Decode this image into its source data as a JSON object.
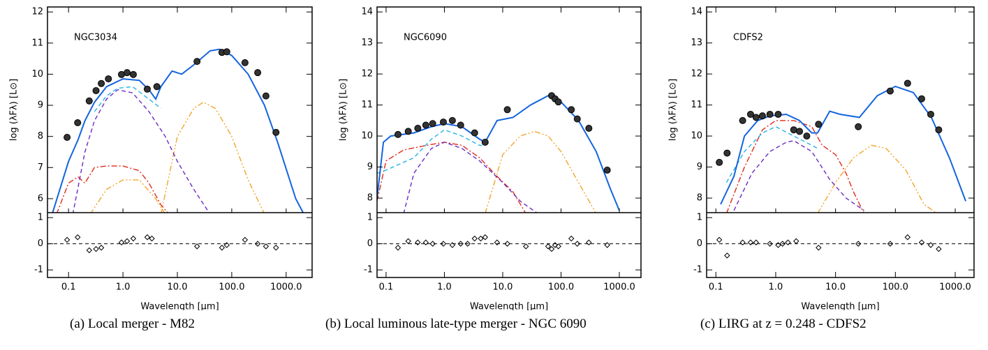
{
  "chart_data": [
    {
      "type": "line",
      "caption": "(a) Local merger - M82",
      "label": "NGC3034",
      "xlabel": "Wavelength [μm]",
      "ylabel": "log (λFλ) [L⊙]",
      "log_x": true,
      "xlim": [
        0.041,
        3000
      ],
      "xticks": [
        0.1,
        {
          "value": 1,
          "label": "1.0"
        },
        {
          "value": 10,
          "label": "10.0"
        },
        {
          "value": 100,
          "label": "100.0"
        },
        {
          "value": 1000,
          "label": "1000.0"
        }
      ],
      "ylim": [
        5.55,
        12.16
      ],
      "yticks": [
        6,
        7,
        8,
        9,
        10,
        11,
        12
      ],
      "series": [
        {
          "color": "#f2a52a",
          "style": "dashdotdot",
          "x": [
            0.25,
            0.5,
            1,
            2,
            4,
            6
          ],
          "values": [
            5.5,
            6.3,
            6.6,
            6.6,
            6.0,
            5.5
          ]
        },
        {
          "color": "#f2a52a",
          "style": "dashdotdot",
          "x": [
            5,
            10,
            20,
            30,
            50,
            100,
            200,
            400
          ],
          "values": [
            5.5,
            8.0,
            8.9,
            9.1,
            8.9,
            8.0,
            6.6,
            5.5
          ]
        },
        {
          "color": "#e02a1a",
          "style": "dashdot",
          "x": [
            0.06,
            0.1,
            0.15,
            0.2,
            0.3,
            0.5,
            1,
            2,
            3,
            5,
            7
          ],
          "values": [
            5.5,
            6.5,
            6.7,
            6.5,
            7.0,
            7.05,
            7.05,
            6.9,
            6.5,
            5.8,
            5.5
          ]
        },
        {
          "color": "#6a2bc4",
          "style": "dashed",
          "x": [
            0.12,
            0.2,
            0.3,
            0.5,
            0.8,
            1.5,
            3,
            6,
            10,
            20,
            40
          ],
          "values": [
            5.5,
            7.5,
            8.5,
            9.2,
            9.5,
            9.4,
            8.8,
            8.0,
            7.2,
            6.3,
            5.5
          ]
        },
        {
          "color": "#22b4e4",
          "style": "dashed",
          "x": [
            0.3,
            0.5,
            0.8,
            1.5,
            3,
            5
          ],
          "values": [
            8.8,
            9.3,
            9.55,
            9.6,
            9.2,
            8.9
          ]
        },
        {
          "color": "#1464e0",
          "style": "solid",
          "x": [
            0.05,
            0.1,
            0.15,
            0.2,
            0.3,
            0.5,
            1,
            2,
            3,
            4,
            5,
            8,
            12,
            20,
            40,
            60,
            100,
            200,
            400,
            700,
            1500,
            3000
          ],
          "values": [
            5.5,
            7.2,
            7.9,
            8.5,
            9.1,
            9.6,
            9.85,
            9.8,
            9.5,
            9.2,
            9.6,
            10.1,
            10.0,
            10.3,
            10.75,
            10.8,
            10.6,
            10.0,
            9.0,
            7.8,
            6.0,
            5.0
          ]
        }
      ],
      "points": {
        "color": "#333333",
        "x": [
          0.094,
          0.147,
          0.24,
          0.32,
          0.4,
          0.54,
          0.94,
          1.19,
          1.55,
          2.8,
          4.2,
          23,
          66,
          81,
          175,
          300,
          425,
          650
        ],
        "values": [
          7.97,
          8.44,
          9.14,
          9.47,
          9.7,
          9.85,
          9.99,
          10.05,
          9.99,
          9.52,
          9.6,
          10.41,
          10.7,
          10.72,
          10.37,
          10.05,
          9.3,
          8.13
        ]
      },
      "residuals": {
        "ylim": [
          -1.29,
          1.19
        ],
        "yticks": [
          -1,
          0,
          1
        ],
        "zero_line": 0,
        "x": [
          0.094,
          0.147,
          0.24,
          0.32,
          0.4,
          0.94,
          1.19,
          1.55,
          2.8,
          3.4,
          23,
          66,
          81,
          175,
          300,
          425,
          650
        ],
        "values": [
          0.15,
          0.25,
          -0.25,
          -0.2,
          -0.15,
          0.05,
          0.1,
          0.2,
          0.25,
          0.2,
          -0.1,
          -0.15,
          -0.05,
          0.15,
          0.0,
          -0.1,
          -0.15
        ]
      }
    },
    {
      "type": "line",
      "caption": "(b) Local luminous late-type merger - NGC 6090",
      "label": "NGC6090",
      "xlabel": "Wavelength [μm]",
      "ylabel": "log (λFλ) [L⊙]",
      "log_x": true,
      "xlim": [
        0.07,
        2350
      ],
      "xticks": [
        0.1,
        {
          "value": 1,
          "label": "1.0"
        },
        {
          "value": 10,
          "label": "10.0"
        },
        {
          "value": 100,
          "label": "100.0"
        },
        {
          "value": 1000,
          "label": "1000.0"
        }
      ],
      "ylim": [
        7.53,
        14.16
      ],
      "yticks": [
        8,
        9,
        10,
        11,
        12,
        13,
        14
      ],
      "series": [
        {
          "color": "#f2a52a",
          "style": "dashdotdot",
          "x": [
            5,
            10,
            20,
            35,
            60,
            100,
            200,
            400
          ],
          "values": [
            7.5,
            9.4,
            10.0,
            10.15,
            10.0,
            9.5,
            8.5,
            7.5
          ]
        },
        {
          "color": "#e02a1a",
          "style": "dashdot",
          "x": [
            0.07,
            0.1,
            0.2,
            0.5,
            1,
            2,
            4,
            8,
            15,
            25
          ],
          "values": [
            7.9,
            9.2,
            9.55,
            9.7,
            9.8,
            9.7,
            9.3,
            8.7,
            8.2,
            7.5
          ]
        },
        {
          "color": "#6a2bc4",
          "style": "dashed",
          "x": [
            0.2,
            0.3,
            0.6,
            1,
            2,
            4,
            10,
            20,
            40
          ],
          "values": [
            7.5,
            8.8,
            9.6,
            9.8,
            9.6,
            9.2,
            8.5,
            7.9,
            7.5
          ]
        },
        {
          "color": "#22b4e4",
          "style": "dashed",
          "x": [
            0.07,
            0.1,
            0.3,
            0.6,
            1,
            2,
            4,
            5
          ],
          "values": [
            8.8,
            8.9,
            9.3,
            9.9,
            10.2,
            10.0,
            9.7,
            9.7
          ]
        },
        {
          "color": "#1464e0",
          "style": "solid",
          "x": [
            0.07,
            0.09,
            0.12,
            0.3,
            0.6,
            1,
            2,
            4,
            5,
            8,
            15,
            30,
            60,
            100,
            200,
            400,
            700,
            1000
          ],
          "values": [
            8.0,
            9.8,
            10.0,
            10.1,
            10.3,
            10.4,
            10.3,
            9.9,
            9.8,
            10.5,
            10.6,
            11.0,
            11.3,
            11.1,
            10.5,
            9.5,
            8.3,
            7.6
          ]
        }
      ],
      "points": {
        "color": "#333333",
        "x": [
          0.16,
          0.24,
          0.35,
          0.48,
          0.63,
          0.96,
          1.37,
          1.9,
          3.3,
          5.0,
          12,
          69,
          79,
          90,
          150,
          190,
          300,
          620
        ],
        "values": [
          10.05,
          10.15,
          10.25,
          10.35,
          10.4,
          10.45,
          10.5,
          10.35,
          10.1,
          9.8,
          10.85,
          11.3,
          11.2,
          11.1,
          10.85,
          10.55,
          10.25,
          8.9
        ]
      },
      "residuals": {
        "ylim": [
          -1.29,
          1.19
        ],
        "yticks": [
          -1,
          0,
          1
        ],
        "zero_line": 0,
        "x": [
          0.16,
          0.24,
          0.35,
          0.48,
          0.63,
          0.96,
          1.37,
          1.9,
          2.5,
          3.3,
          4.2,
          5.0,
          8,
          12,
          25,
          60,
          69,
          79,
          90,
          150,
          190,
          300,
          620
        ],
        "values": [
          -0.15,
          0.1,
          0.05,
          0.05,
          0.0,
          0.0,
          -0.05,
          0.0,
          0.0,
          0.2,
          0.2,
          0.25,
          0.05,
          0.0,
          -0.1,
          -0.1,
          -0.2,
          -0.05,
          -0.1,
          0.2,
          0.0,
          0.05,
          -0.05
        ]
      }
    },
    {
      "type": "line",
      "caption": "(c) LIRG at z = 0.248 - CDFS2",
      "label": "CDFS2",
      "xlabel": "Wavelength [μm]",
      "ylabel": "log (λFλ) [L⊙]",
      "log_x": true,
      "xlim": [
        0.07,
        2064
      ],
      "xticks": [
        0.1,
        {
          "value": 1,
          "label": "1.0"
        },
        {
          "value": 10,
          "label": "10.0"
        },
        {
          "value": 100,
          "label": "100.0"
        },
        {
          "value": 1000,
          "label": "1000.0"
        }
      ],
      "ylim": [
        7.53,
        14.16
      ],
      "yticks": [
        8,
        9,
        10,
        11,
        12,
        13,
        14
      ],
      "series": [
        {
          "color": "#f2a52a",
          "style": "dashdotdot",
          "x": [
            5,
            10,
            20,
            40,
            70,
            150,
            300,
            500
          ],
          "values": [
            7.5,
            8.5,
            9.3,
            9.7,
            9.6,
            8.9,
            7.8,
            7.5
          ]
        },
        {
          "color": "#e02a1a",
          "style": "dashdot",
          "x": [
            0.15,
            0.3,
            0.6,
            1,
            2,
            4,
            6,
            10,
            15,
            20,
            30
          ],
          "values": [
            7.5,
            9.0,
            10.2,
            10.5,
            10.5,
            10.3,
            9.7,
            9.4,
            8.8,
            8.2,
            7.5
          ]
        },
        {
          "color": "#6a2bc4",
          "style": "dashed",
          "x": [
            0.2,
            0.4,
            0.8,
            1.5,
            2,
            4,
            8,
            15,
            30
          ],
          "values": [
            7.6,
            8.8,
            9.5,
            9.8,
            9.85,
            9.5,
            8.6,
            8.0,
            7.6
          ]
        },
        {
          "color": "#22b4e4",
          "style": "dashed",
          "x": [
            0.15,
            0.3,
            0.6,
            1,
            2,
            4,
            5
          ],
          "values": [
            8.5,
            9.5,
            10.1,
            10.3,
            10.0,
            9.7,
            9.6
          ]
        },
        {
          "color": "#1464e0",
          "style": "solid",
          "x": [
            0.12,
            0.2,
            0.3,
            0.5,
            0.8,
            1.5,
            2.5,
            4,
            5,
            8,
            12,
            25,
            50,
            100,
            200,
            400,
            800,
            1500
          ],
          "values": [
            7.8,
            8.7,
            10.0,
            10.5,
            10.65,
            10.7,
            10.5,
            10.1,
            10.1,
            10.8,
            10.7,
            10.6,
            11.3,
            11.6,
            11.4,
            10.6,
            9.3,
            7.9
          ]
        }
      ],
      "points": {
        "color": "#333333",
        "x": [
          0.114,
          0.154,
          0.28,
          0.38,
          0.47,
          0.6,
          0.8,
          1.1,
          2.0,
          2.5,
          3.3,
          5.2,
          24,
          82,
          160,
          275,
          390,
          530
        ],
        "values": [
          9.15,
          9.45,
          10.5,
          10.7,
          10.6,
          10.65,
          10.7,
          10.7,
          10.2,
          10.15,
          10.0,
          10.38,
          10.3,
          11.45,
          11.7,
          11.2,
          10.7,
          10.2
        ]
      },
      "residuals": {
        "ylim": [
          -1.29,
          1.19
        ],
        "yticks": [
          -1,
          0,
          1
        ],
        "zero_line": 0,
        "x": [
          0.114,
          0.154,
          0.28,
          0.38,
          0.47,
          0.8,
          1.1,
          1.3,
          1.6,
          2.2,
          5.2,
          24,
          82,
          160,
          275,
          390,
          530
        ],
        "values": [
          0.15,
          -0.45,
          0.05,
          0.05,
          0.05,
          0.0,
          -0.05,
          0.0,
          0.05,
          0.1,
          -0.15,
          0.0,
          0.0,
          0.25,
          0.05,
          -0.05,
          -0.2
        ]
      }
    }
  ]
}
